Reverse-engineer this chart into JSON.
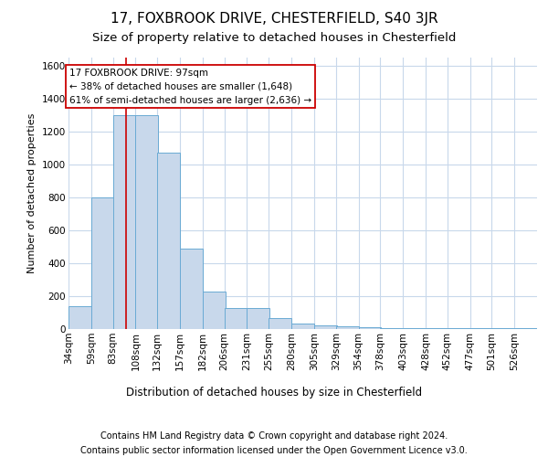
{
  "title1": "17, FOXBROOK DRIVE, CHESTERFIELD, S40 3JR",
  "title2": "Size of property relative to detached houses in Chesterfield",
  "xlabel": "Distribution of detached houses by size in Chesterfield",
  "ylabel": "Number of detached properties",
  "footnote1": "Contains HM Land Registry data © Crown copyright and database right 2024.",
  "footnote2": "Contains public sector information licensed under the Open Government Licence v3.0.",
  "bar_color": "#c8d8eb",
  "bar_edge_color": "#6aaad4",
  "grid_color": "#c8d8eb",
  "annotation_box_color": "#cc0000",
  "annotation_line1": "17 FOXBROOK DRIVE: 97sqm",
  "annotation_line2": "← 38% of detached houses are smaller (1,648)",
  "annotation_line3": "61% of semi-detached houses are larger (2,636) →",
  "vline_color": "#cc0000",
  "property_size": 97,
  "categories": [
    "34sqm",
    "59sqm",
    "83sqm",
    "108sqm",
    "132sqm",
    "157sqm",
    "182sqm",
    "206sqm",
    "231sqm",
    "255sqm",
    "280sqm",
    "305sqm",
    "329sqm",
    "354sqm",
    "378sqm",
    "403sqm",
    "428sqm",
    "452sqm",
    "477sqm",
    "501sqm",
    "526sqm"
  ],
  "bin_starts": [
    34,
    59,
    83,
    108,
    132,
    157,
    182,
    206,
    231,
    255,
    280,
    305,
    329,
    354,
    378,
    403,
    428,
    452,
    477,
    501,
    526
  ],
  "bin_width": 25,
  "values": [
    140,
    800,
    1300,
    1300,
    1070,
    490,
    230,
    130,
    130,
    65,
    35,
    20,
    15,
    10,
    5,
    5,
    5,
    3,
    3,
    3,
    3
  ],
  "ylim": [
    0,
    1650
  ],
  "yticks": [
    0,
    200,
    400,
    600,
    800,
    1000,
    1200,
    1400,
    1600
  ],
  "background_color": "#ffffff",
  "title1_fontsize": 11,
  "title2_fontsize": 9.5,
  "axis_label_fontsize": 8,
  "tick_fontsize": 7.5,
  "footnote_fontsize": 7
}
